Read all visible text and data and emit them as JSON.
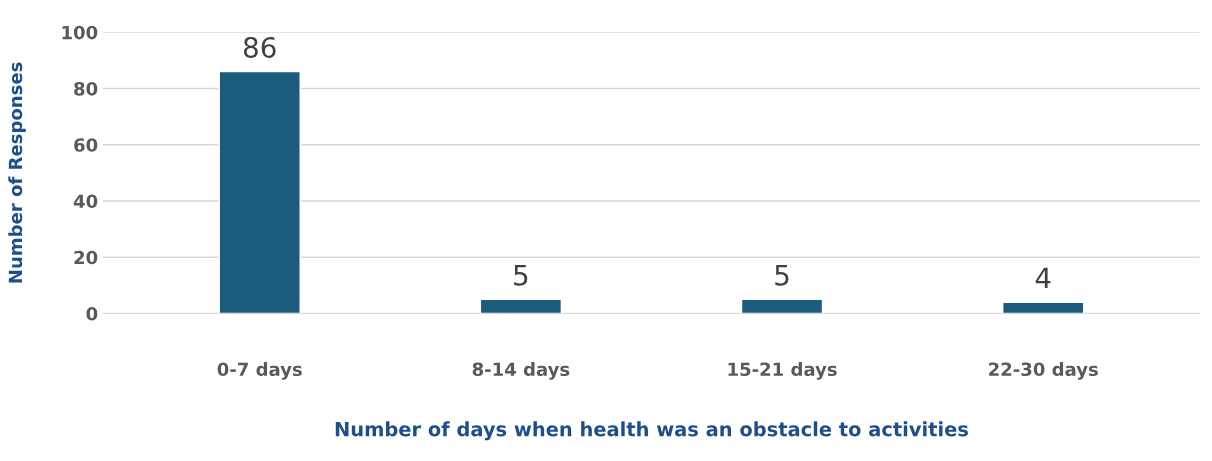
{
  "chart_data": {
    "type": "bar",
    "xlabel": "Number of days when health was an obstacle to activities",
    "ylabel": "Number of Responses",
    "categories": [
      "0-7 days",
      "8-14 days",
      "15-21 days",
      "22-30 days"
    ],
    "values": [
      86,
      5,
      5,
      4
    ],
    "color": "#1b5b7c",
    "ylim": [
      0,
      100
    ],
    "yticks": [
      0,
      20,
      40,
      60,
      80,
      100
    ],
    "grid": "y",
    "data_labels": true
  }
}
